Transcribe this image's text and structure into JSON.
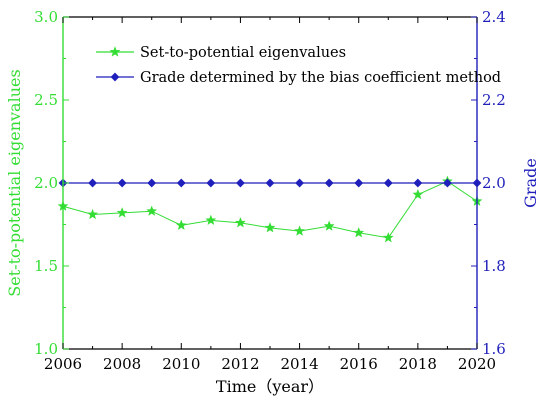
{
  "chart_data": {
    "type": "line",
    "xlabel": "Time（year）",
    "ylabel_left": "Set-to-potential eigenvalues",
    "ylabel_right": "Grade",
    "xlim": [
      2006,
      2020
    ],
    "x_ticks": [
      2006,
      2008,
      2010,
      2012,
      2014,
      2016,
      2018,
      2020
    ],
    "ylim_left": [
      1.0,
      3.0
    ],
    "y_ticks_left": [
      1.0,
      1.5,
      2.0,
      2.5,
      3.0
    ],
    "ylim_right": [
      1.6,
      2.4
    ],
    "y_ticks_right": [
      1.6,
      1.8,
      2.0,
      2.2,
      2.4
    ],
    "legend_position": "top-left",
    "grid": false,
    "axis_colors": {
      "left": "#33dd33",
      "right": "#1f1fbb",
      "bottom": "#000000"
    },
    "series": [
      {
        "name": "Set-to-potential eigenvalues",
        "axis": "left",
        "color": "#33dd33",
        "marker": "star",
        "x": [
          2006,
          2007,
          2008,
          2009,
          2010,
          2011,
          2012,
          2013,
          2014,
          2015,
          2016,
          2017,
          2018,
          2019,
          2020
        ],
        "values": [
          1.86,
          1.81,
          1.82,
          1.83,
          1.745,
          1.775,
          1.76,
          1.73,
          1.71,
          1.74,
          1.7,
          1.67,
          1.93,
          2.01,
          1.89
        ]
      },
      {
        "name": "Grade determined by the bias coefficient method",
        "axis": "right",
        "color": "#1f1fbb",
        "marker": "diamond",
        "x": [
          2006,
          2007,
          2008,
          2009,
          2010,
          2011,
          2012,
          2013,
          2014,
          2015,
          2016,
          2017,
          2018,
          2019,
          2020
        ],
        "values": [
          2.0,
          2.0,
          2.0,
          2.0,
          2.0,
          2.0,
          2.0,
          2.0,
          2.0,
          2.0,
          2.0,
          2.0,
          2.0,
          2.0,
          2.0
        ]
      }
    ]
  }
}
